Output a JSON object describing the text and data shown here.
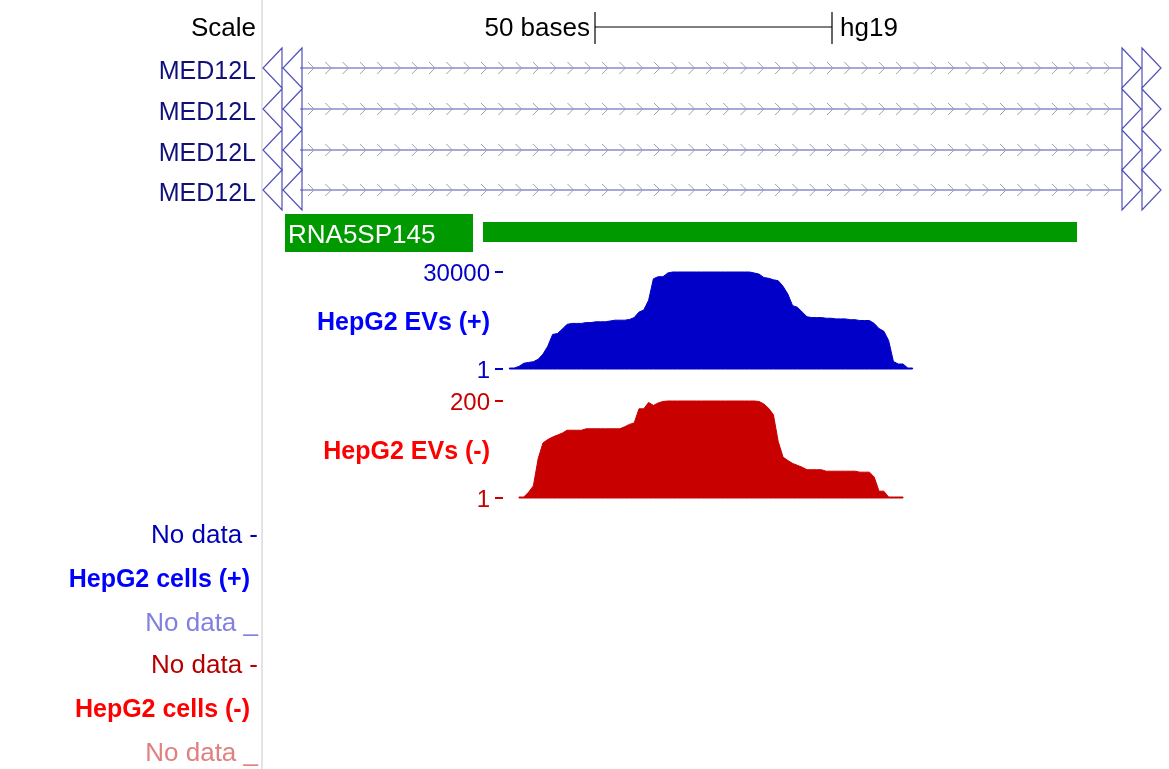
{
  "chart_data": [
    {
      "type": "other",
      "annotations": [
        "Scale",
        "50 bases",
        "hg19",
        "MED12L",
        "MED12L",
        "MED12L",
        "MED12L",
        "RNA5SP145"
      ]
    },
    {
      "type": "area",
      "title": "HepG2 EVs (+)",
      "tick_labels": "y",
      "ylim": [
        1,
        30000
      ],
      "yticks": [
        30000,
        1
      ],
      "categories": [
        null,
        null,
        null,
        null,
        null,
        null,
        null,
        null,
        null,
        null,
        null,
        null,
        null,
        null,
        null,
        null,
        null,
        null,
        null,
        null,
        null,
        null,
        null,
        null,
        null,
        null,
        null,
        null,
        null,
        null,
        null,
        null,
        null,
        null,
        null,
        null,
        null,
        null,
        null,
        null,
        null,
        null,
        null,
        null,
        null,
        null,
        null,
        null,
        null,
        null,
        null,
        null,
        null,
        null,
        null,
        null,
        null,
        null,
        null,
        null,
        null,
        null,
        null,
        null,
        null,
        null,
        null,
        null,
        null,
        null,
        null,
        null,
        null,
        null,
        null,
        null,
        null,
        null,
        null,
        null,
        null,
        null,
        null,
        null,
        null
      ],
      "series": [
        {
          "color": "#0000c8",
          "values": [
            300,
            300,
            810,
            1780,
            2030,
            2270,
            3000,
            4620,
            7060,
            10700,
            10950,
            12300,
            13800,
            14100,
            14100,
            14100,
            14350,
            14350,
            14600,
            14600,
            14600,
            14850,
            15100,
            15100,
            15100,
            15300,
            15900,
            17600,
            18250,
            21250,
            27900,
            28550,
            28550,
            29700,
            30000,
            30000,
            30000,
            30000,
            30000,
            30000,
            30000,
            30000,
            30000,
            30000,
            30000,
            30000,
            30000,
            30000,
            30000,
            30000,
            30000,
            29700,
            29350,
            28300,
            28050,
            27600,
            27300,
            25600,
            23200,
            19600,
            19100,
            17600,
            16150,
            15900,
            15900,
            15900,
            15700,
            15700,
            15500,
            15500,
            15500,
            15250,
            15250,
            15000,
            15000,
            15000,
            14100,
            12500,
            11700,
            8850,
            2350,
            1540,
            1540,
            300,
            300
          ]
        }
      ]
    },
    {
      "type": "area",
      "title": "HepG2 EVs (-)",
      "tick_labels": "y",
      "ylim": [
        1,
        200
      ],
      "yticks": [
        200,
        1
      ],
      "categories": [
        null,
        null,
        null,
        null,
        null,
        null,
        null,
        null,
        null,
        null,
        null,
        null,
        null,
        null,
        null,
        null,
        null,
        null,
        null,
        null,
        null,
        null,
        null,
        null,
        null,
        null,
        null,
        null,
        null,
        null,
        null,
        null,
        null,
        null,
        null,
        null,
        null,
        null,
        null,
        null,
        null,
        null,
        null,
        null,
        null,
        null,
        null,
        null,
        null,
        null,
        null,
        null,
        null,
        null,
        null,
        null,
        null,
        null,
        null,
        null,
        null,
        null,
        null,
        null,
        null,
        null,
        null,
        null,
        null,
        null,
        null,
        null,
        null,
        null,
        null,
        null,
        null,
        null,
        null,
        null,
        null
      ],
      "series": [
        {
          "color": "#c80000",
          "values": [
            3,
            3,
            13,
            26,
            82,
            114,
            121,
            126,
            130,
            134,
            140,
            140,
            140,
            140,
            143,
            143,
            143,
            143,
            143,
            143,
            143,
            143,
            147,
            152,
            155,
            184,
            184,
            197,
            191,
            196,
            199,
            200,
            200,
            200,
            200,
            200,
            200,
            200,
            200,
            200,
            200,
            200,
            200,
            200,
            200,
            200,
            200,
            200,
            200,
            200,
            199,
            194,
            185,
            172,
            117,
            85,
            78,
            72,
            68,
            64,
            59,
            59,
            59,
            59,
            56,
            56,
            56,
            56,
            56,
            56,
            56,
            54,
            54,
            54,
            44,
            15,
            15,
            3,
            3,
            3,
            3
          ]
        }
      ]
    },
    {
      "type": "other",
      "title": "HepG2 cells (+)",
      "annotations": [
        "No data -",
        "No data _"
      ]
    },
    {
      "type": "other",
      "title": "HepG2 cells (-)",
      "annotations": [
        "No data -",
        "No data _"
      ]
    }
  ]
}
